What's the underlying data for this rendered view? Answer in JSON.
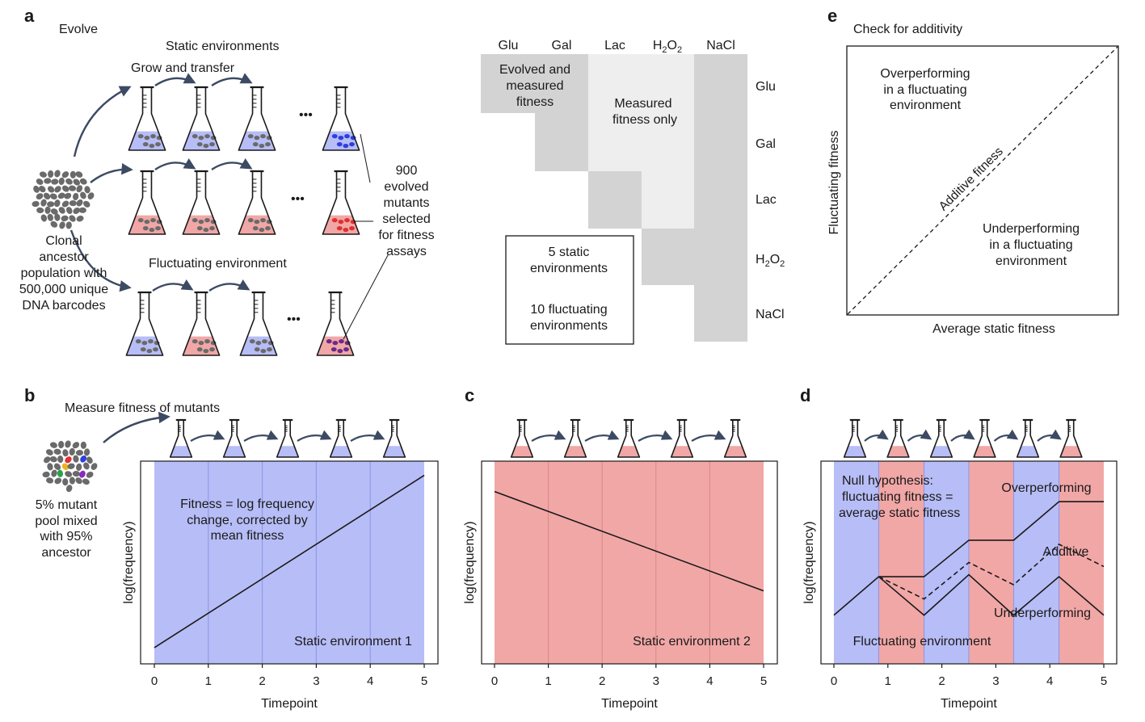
{
  "colors": {
    "blue_env": "#b7bdf6",
    "red_env": "#f1a7a6",
    "blue_gridline": "#8c94e8",
    "red_gridline": "#d98886",
    "arrow": "#3c4a63",
    "pebble": "#6a6a6a",
    "grid_dark": "#d3d3d3",
    "grid_light": "#eeeeee",
    "blue_cells": "#2d3fe0",
    "red_cells": "#e03030",
    "purple_cells": "#6a2a8a"
  },
  "panel_a": {
    "label": "a",
    "title": "Evolve",
    "static_title": "Static environments",
    "grow_transfer": "Grow and transfer",
    "fluct_title": "Fluctuating environment",
    "ellipsis": "•••",
    "ancestor_lines": [
      "Clonal",
      "ancestor",
      "population with",
      "500,000 unique",
      "DNA barcodes"
    ],
    "mutants_lines": [
      "900",
      "evolved",
      "mutants",
      "selected",
      "for fitness",
      "assays"
    ],
    "grid": {
      "cols": [
        "Glu",
        "Gal",
        "Lac",
        "H2O2",
        "NaCl"
      ],
      "rows": [
        "Glu",
        "Gal",
        "Lac",
        "H2O2",
        "NaCl"
      ],
      "evolved_lines": [
        "Evolved and",
        "measured",
        "fitness"
      ],
      "measured_lines": [
        "Measured",
        "fitness only"
      ],
      "legend_static": [
        "5 static",
        "environments"
      ],
      "legend_fluct": [
        "10 fluctuating",
        "environments"
      ]
    }
  },
  "panel_b": {
    "label": "b",
    "title": "Measure fitness of mutants",
    "pool_lines": [
      "5% mutant",
      "pool mixed",
      "with 95%",
      "ancestor"
    ],
    "annotation_lines": [
      "Fitness = log frequency",
      "change, corrected by",
      "mean fitness"
    ],
    "env_label": "Static environment 1"
  },
  "panel_c": {
    "label": "c",
    "env_label": "Static environment 2"
  },
  "panel_d": {
    "label": "d",
    "null_lines": [
      "Null hypothesis:",
      "fluctuating fitness =",
      "average static fitness"
    ],
    "overperforming": "Overperforming",
    "additive": "Additive",
    "underperforming": "Underperforming",
    "env_label": "Fluctuating environment"
  },
  "panel_e": {
    "label": "e",
    "title": "Check for additivity",
    "over_lines": [
      "Overperforming",
      "in a fluctuating",
      "environment"
    ],
    "under_lines": [
      "Underperforming",
      "in a fluctuating",
      "environment"
    ],
    "diag_label": "Additive fitness",
    "xlabel": "Average static fitness",
    "ylabel": "Fluctuating fitness"
  },
  "chart_data": [
    {
      "type": "line",
      "panel": "b",
      "xlabel": "Timepoint",
      "ylabel": "log(frequency)",
      "xlim": [
        0,
        5
      ],
      "ylim": [
        0,
        1
      ],
      "x_ticks": [
        0,
        1,
        2,
        3,
        4,
        5
      ],
      "environments": [
        "blue",
        "blue",
        "blue",
        "blue",
        "blue"
      ],
      "series": [
        {
          "x": [
            0,
            5
          ],
          "y": [
            0.08,
            0.93
          ],
          "style": "solid"
        }
      ]
    },
    {
      "type": "line",
      "panel": "c",
      "xlabel": "Timepoint",
      "ylabel": "log(frequency)",
      "xlim": [
        0,
        5
      ],
      "ylim": [
        0,
        1
      ],
      "x_ticks": [
        0,
        1,
        2,
        3,
        4,
        5
      ],
      "environments": [
        "red",
        "red",
        "red",
        "red",
        "red"
      ],
      "series": [
        {
          "x": [
            0,
            5
          ],
          "y": [
            0.85,
            0.36
          ],
          "style": "solid"
        }
      ]
    },
    {
      "type": "line",
      "panel": "d",
      "xlabel": "Timepoint",
      "ylabel": "log(frequency)",
      "xlim": [
        0,
        5.5
      ],
      "ylim": [
        0,
        1
      ],
      "x_ticks": [
        0,
        1,
        2,
        3,
        4,
        5
      ],
      "environments": [
        "blue",
        "red",
        "blue",
        "red",
        "blue",
        "red"
      ],
      "env_boundaries": [
        0,
        0.83,
        1.67,
        2.5,
        3.33,
        4.17,
        5
      ],
      "series": [
        {
          "name": "Overperforming",
          "x": [
            0,
            0.83,
            1.67,
            2.5,
            3.33,
            4.17,
            5
          ],
          "y": [
            0.24,
            0.43,
            0.43,
            0.61,
            0.61,
            0.8,
            0.8
          ],
          "style": "solid"
        },
        {
          "name": "Additive",
          "x": [
            0.83,
            1.67,
            2.5,
            3.33,
            4.17,
            5
          ],
          "y": [
            0.43,
            0.32,
            0.5,
            0.39,
            0.59,
            0.48
          ],
          "style": "dashed"
        },
        {
          "name": "Underperforming",
          "x": [
            0.83,
            1.67,
            2.5,
            3.33,
            4.17,
            5
          ],
          "y": [
            0.43,
            0.24,
            0.44,
            0.24,
            0.43,
            0.24
          ],
          "style": "solid"
        }
      ]
    }
  ]
}
